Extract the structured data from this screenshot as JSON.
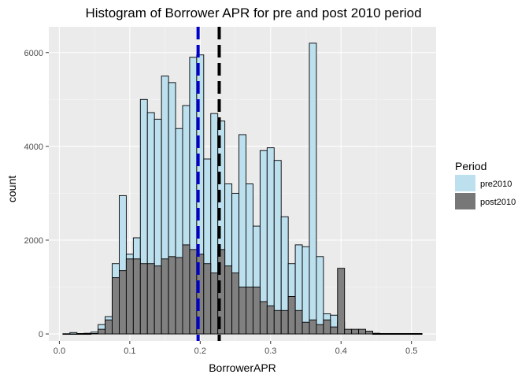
{
  "chart_data": {
    "type": "histogram",
    "title": "Histogram of Borrower APR for pre and post 2010 period",
    "xlabel": "BorrowerAPR",
    "ylabel": "count",
    "xlim": [
      -0.015,
      0.535
    ],
    "ylim": [
      -150,
      6550
    ],
    "x_ticks": [
      0.0,
      0.1,
      0.2,
      0.3,
      0.4,
      0.5
    ],
    "x_tick_labels": [
      "0.0",
      "0.1",
      "0.2",
      "0.3",
      "0.4",
      "0.5"
    ],
    "y_ticks": [
      0,
      2000,
      4000,
      6000
    ],
    "y_tick_labels": [
      "0",
      "2000",
      "4000",
      "6000"
    ],
    "grid": true,
    "bin_width": 0.01,
    "x": [
      0.01,
      0.02,
      0.03,
      0.04,
      0.05,
      0.06,
      0.07,
      0.08,
      0.09,
      0.1,
      0.11,
      0.12,
      0.13,
      0.14,
      0.15,
      0.16,
      0.17,
      0.18,
      0.19,
      0.2,
      0.21,
      0.22,
      0.23,
      0.24,
      0.25,
      0.26,
      0.27,
      0.28,
      0.29,
      0.3,
      0.31,
      0.32,
      0.33,
      0.34,
      0.35,
      0.36,
      0.37,
      0.38,
      0.39,
      0.4,
      0.41,
      0.42,
      0.43,
      0.44,
      0.45,
      0.46,
      0.47,
      0.48,
      0.49,
      0.5,
      0.51
    ],
    "series": [
      {
        "name": "pre2010",
        "color": "#bde0ef",
        "values": [
          5,
          30,
          10,
          15,
          40,
          200,
          370,
          1500,
          2950,
          1700,
          2050,
          5000,
          4720,
          4580,
          5500,
          5360,
          4380,
          4870,
          5900,
          5950,
          3730,
          4700,
          4540,
          3200,
          3000,
          4250,
          3200,
          2300,
          3910,
          3970,
          3700,
          2500,
          1500,
          1900,
          1860,
          6200,
          1650,
          430,
          400,
          260,
          80,
          80,
          30,
          20,
          15,
          10,
          10,
          10,
          10,
          10,
          10
        ]
      },
      {
        "name": "post2010",
        "color": "#808080",
        "values": [
          0,
          0,
          0,
          0,
          10,
          100,
          300,
          1200,
          1350,
          1600,
          1600,
          1500,
          1500,
          1450,
          1600,
          1650,
          1630,
          1900,
          1800,
          1700,
          1500,
          1300,
          1800,
          1450,
          1300,
          1000,
          1000,
          1000,
          690,
          600,
          500,
          500,
          800,
          500,
          250,
          300,
          200,
          300,
          150,
          1400,
          100,
          100,
          100,
          60,
          0,
          0,
          0,
          0,
          0,
          0,
          0
        ]
      }
    ],
    "vlines": [
      {
        "x": 0.197,
        "color": "#0000cd",
        "style": "dashed"
      },
      {
        "x": 0.227,
        "color": "#000000",
        "style": "dashed"
      }
    ],
    "legend": {
      "title": "Period",
      "position": "right",
      "entries": [
        {
          "label": "pre2010",
          "color": "#bde0ef"
        },
        {
          "label": "post2010",
          "color": "#777777"
        }
      ]
    }
  }
}
